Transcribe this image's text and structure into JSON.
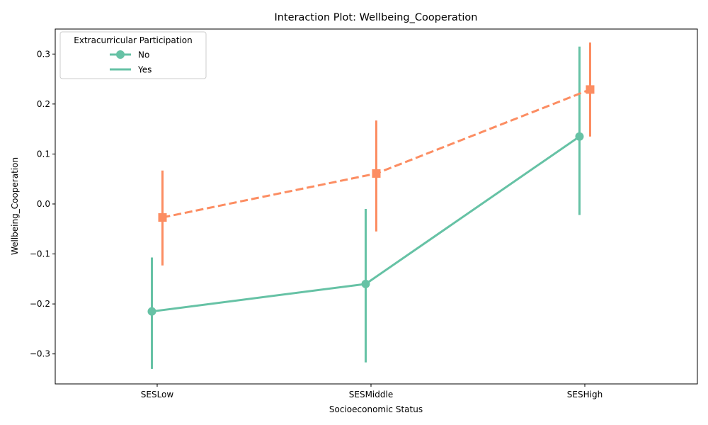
{
  "chart_data": {
    "type": "line",
    "title": "Interaction Plot: Wellbeing_Cooperation",
    "xlabel": "Socioeconomic Status",
    "ylabel": "Wellbeing_Cooperation",
    "categories": [
      "SESLow",
      "SESMiddle",
      "SESHigh"
    ],
    "ylim": [
      -0.36,
      0.35
    ],
    "yticks": [
      -0.3,
      -0.2,
      -0.1,
      0.0,
      0.1,
      0.2,
      0.3
    ],
    "ytick_labels": [
      "−0.3",
      "−0.2",
      "−0.1",
      "0.0",
      "0.1",
      "0.2",
      "0.3"
    ],
    "grid": false,
    "legend": {
      "title": "Extracurricular Participation",
      "placement": "top-left",
      "entries": [
        "No",
        "Yes"
      ]
    },
    "series": [
      {
        "name": "No",
        "color": "#66c2a5",
        "marker": "circle",
        "linestyle": "solid",
        "values": [
          -0.215,
          -0.16,
          0.135
        ],
        "ci_low": [
          -0.33,
          -0.317,
          -0.022
        ],
        "ci_high": [
          -0.107,
          -0.01,
          0.315
        ]
      },
      {
        "name": "Yes",
        "color": "#fc8d62",
        "marker": "square",
        "linestyle": "dashed",
        "values": [
          -0.027,
          0.061,
          0.229
        ],
        "ci_low": [
          -0.123,
          -0.055,
          0.135
        ],
        "ci_high": [
          0.067,
          0.167,
          0.323
        ]
      }
    ]
  }
}
